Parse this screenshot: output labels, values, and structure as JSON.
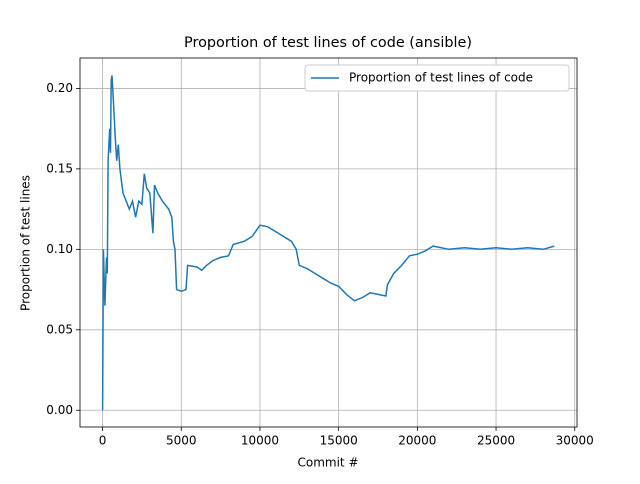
{
  "chart_data": {
    "type": "line",
    "title": "Proportion of test lines of code (ansible)",
    "x_label": "Commit #",
    "y_label": "Proportion of test lines",
    "x": [
      0,
      50,
      150,
      250,
      300,
      350,
      450,
      500,
      550,
      600,
      700,
      800,
      900,
      1000,
      1100,
      1300,
      1500,
      1700,
      1900,
      2100,
      2300,
      2500,
      2650,
      2800,
      3000,
      3200,
      3300,
      3500,
      3800,
      4200,
      4400,
      4500,
      4600,
      4700,
      5000,
      5300,
      5400,
      6000,
      6300,
      6600,
      7000,
      7500,
      8000,
      8300,
      9000,
      9500,
      10000,
      10500,
      11000,
      11500,
      12000,
      12300,
      12500,
      13000,
      13500,
      14000,
      14500,
      15000,
      15500,
      16000,
      16500,
      17000,
      17500,
      18000,
      18100,
      18500,
      19000,
      19500,
      20000,
      20500,
      21000,
      22000,
      23000,
      24000,
      25000,
      26000,
      27000,
      28000,
      28700
    ],
    "series": [
      {
        "name": "Proportion of test lines of code",
        "color": "#1f77b4",
        "values": [
          0.0,
          0.1,
          0.065,
          0.095,
          0.085,
          0.155,
          0.175,
          0.16,
          0.205,
          0.208,
          0.19,
          0.17,
          0.155,
          0.165,
          0.15,
          0.135,
          0.13,
          0.125,
          0.13,
          0.12,
          0.13,
          0.128,
          0.147,
          0.138,
          0.135,
          0.11,
          0.14,
          0.135,
          0.13,
          0.125,
          0.12,
          0.105,
          0.1,
          0.075,
          0.074,
          0.075,
          0.09,
          0.089,
          0.087,
          0.09,
          0.093,
          0.095,
          0.096,
          0.103,
          0.105,
          0.108,
          0.115,
          0.114,
          0.111,
          0.108,
          0.105,
          0.1,
          0.09,
          0.088,
          0.085,
          0.082,
          0.079,
          0.077,
          0.072,
          0.068,
          0.07,
          0.073,
          0.072,
          0.071,
          0.078,
          0.085,
          0.09,
          0.096,
          0.097,
          0.099,
          0.102,
          0.1,
          0.101,
          0.1,
          0.101,
          0.1,
          0.101,
          0.1,
          0.102
        ]
      }
    ],
    "xlim": [
      -1435,
      30144
    ],
    "ylim": [
      -0.0104,
      0.2189
    ],
    "xticks": [
      0,
      5000,
      10000,
      15000,
      20000,
      25000,
      30000
    ],
    "yticks": [
      {
        "value": 0,
        "label": "0.00"
      },
      0.05,
      {
        "value": 0.1,
        "label": "0.10"
      },
      0.15,
      {
        "value": 0.2,
        "label": "0.20"
      }
    ],
    "grid": true,
    "legend": "upper right"
  }
}
